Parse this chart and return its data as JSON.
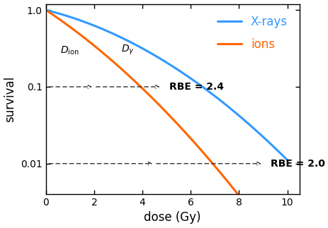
{
  "title": "",
  "xlabel": "dose (Gy)",
  "ylabel": "survival",
  "xlim": [
    0,
    10.5
  ],
  "ylim": [
    0.004,
    1.2
  ],
  "xray_color": "#3399ff",
  "ion_color": "#ff6600",
  "arrow_color": "#333333",
  "legend_xray_label": "X-rays",
  "legend_ion_label": "ions",
  "dion_label": "$D_{\\mathrm{ion}}$",
  "dy_label": "$D_\\gamma$",
  "rbe24_label": "RBE = 2.4",
  "rbe20_label": "RBE = 2.0",
  "rbe_24_survival": 0.1,
  "rbe_20_survival": 0.01,
  "rbe_24_dose_ion": 2.0,
  "rbe_24_dose_xray": 4.8,
  "rbe_20_dose_ion": 4.5,
  "rbe_20_dose_xray": 9.0,
  "background_color": "#ffffff",
  "tick_fontsize": 10,
  "label_fontsize": 12,
  "legend_fontsize": 12,
  "line_width": 2.2,
  "xray_alpha": 0.18,
  "xray_beta": 0.027,
  "ion_alpha": 0.48,
  "ion_beta": 0.027
}
